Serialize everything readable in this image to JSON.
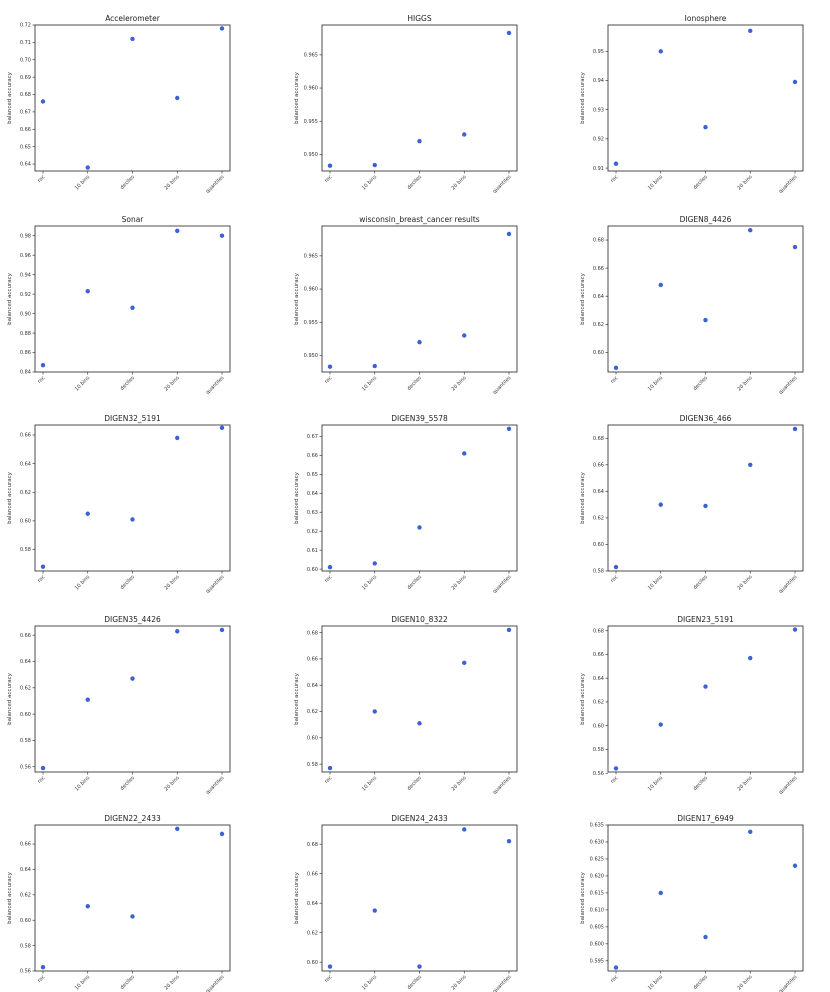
{
  "chart_data": [
    {
      "type": "scatter",
      "title": "Accelerometer",
      "ylabel": "balanced accuracy",
      "categories": [
        "roc",
        "10 bins",
        "deciles",
        "20 bins",
        "quantiles"
      ],
      "values": [
        0.676,
        0.638,
        0.712,
        0.678,
        0.718
      ],
      "ylim": [
        0.636,
        0.72
      ],
      "yticks": [
        0.64,
        0.65,
        0.66,
        0.67,
        0.68,
        0.69,
        0.7,
        0.71,
        0.72
      ],
      "ytick_labels": [
        "0.64",
        "0.65",
        "0.66",
        "0.67",
        "0.68",
        "0.69",
        "0.70",
        "0.71",
        "0.72"
      ]
    },
    {
      "type": "scatter",
      "title": "HIGGS",
      "ylabel": "balanced accuracy",
      "categories": [
        "roc",
        "10 bins",
        "deciles",
        "20 bins",
        "quantiles"
      ],
      "values": [
        0.9483,
        0.9484,
        0.952,
        0.953,
        0.9683
      ],
      "ylim": [
        0.9475,
        0.9695
      ],
      "yticks": [
        0.95,
        0.955,
        0.96,
        0.965
      ],
      "ytick_labels": [
        "0.950",
        "0.955",
        "0.960",
        "0.965"
      ]
    },
    {
      "type": "scatter",
      "title": "Ionosphere",
      "ylabel": "balanced accuracy",
      "categories": [
        "roc",
        "10 bins",
        "deciles",
        "20 bins",
        "quantiles"
      ],
      "values": [
        0.9115,
        0.95,
        0.924,
        0.957,
        0.9395
      ],
      "ylim": [
        0.909,
        0.959
      ],
      "yticks": [
        0.91,
        0.92,
        0.93,
        0.94,
        0.95
      ],
      "ytick_labels": [
        "0.91",
        "0.92",
        "0.93",
        "0.94",
        "0.95"
      ]
    },
    {
      "type": "scatter",
      "title": "Sonar",
      "ylabel": "balanced accuracy",
      "categories": [
        "roc",
        "10 bins",
        "deciles",
        "20 bins",
        "quantiles"
      ],
      "values": [
        0.847,
        0.923,
        0.906,
        0.985,
        0.98
      ],
      "ylim": [
        0.84,
        0.99
      ],
      "yticks": [
        0.84,
        0.86,
        0.88,
        0.9,
        0.92,
        0.94,
        0.96,
        0.98
      ],
      "ytick_labels": [
        "0.84",
        "0.86",
        "0.88",
        "0.90",
        "0.92",
        "0.94",
        "0.96",
        "0.98"
      ]
    },
    {
      "type": "scatter",
      "title": "wisconsin_breast_cancer results",
      "ylabel": "balanced accuracy",
      "categories": [
        "roc",
        "10 bins",
        "deciles",
        "20 bins",
        "quantiles"
      ],
      "values": [
        0.9483,
        0.9484,
        0.952,
        0.953,
        0.9683
      ],
      "ylim": [
        0.9475,
        0.9695
      ],
      "yticks": [
        0.95,
        0.955,
        0.96,
        0.965
      ],
      "ytick_labels": [
        "0.950",
        "0.955",
        "0.960",
        "0.965"
      ]
    },
    {
      "type": "scatter",
      "title": "DIGEN8_4426",
      "ylabel": "balanced accuracy",
      "categories": [
        "roc",
        "10 bins",
        "deciles",
        "20 bins",
        "quantiles"
      ],
      "values": [
        0.589,
        0.648,
        0.623,
        0.687,
        0.675
      ],
      "ylim": [
        0.586,
        0.69
      ],
      "yticks": [
        0.6,
        0.62,
        0.64,
        0.66,
        0.68
      ],
      "ytick_labels": [
        "0.60",
        "0.62",
        "0.64",
        "0.66",
        "0.68"
      ]
    },
    {
      "type": "scatter",
      "title": "DIGEN32_5191",
      "ylabel": "balanced accuracy",
      "categories": [
        "roc",
        "10 bins",
        "deciles",
        "20 bins",
        "quantiles"
      ],
      "values": [
        0.568,
        0.605,
        0.601,
        0.658,
        0.665
      ],
      "ylim": [
        0.565,
        0.667
      ],
      "yticks": [
        0.58,
        0.6,
        0.62,
        0.64,
        0.66
      ],
      "ytick_labels": [
        "0.58",
        "0.60",
        "0.62",
        "0.64",
        "0.66"
      ]
    },
    {
      "type": "scatter",
      "title": "DIGEN39_5578",
      "ylabel": "balanced accuracy",
      "categories": [
        "roc",
        "10 bins",
        "deciles",
        "20 bins",
        "quantiles"
      ],
      "values": [
        0.601,
        0.603,
        0.622,
        0.661,
        0.674
      ],
      "ylim": [
        0.599,
        0.676
      ],
      "yticks": [
        0.6,
        0.61,
        0.62,
        0.63,
        0.64,
        0.65,
        0.66,
        0.67
      ],
      "ytick_labels": [
        "0.60",
        "0.61",
        "0.62",
        "0.63",
        "0.64",
        "0.65",
        "0.66",
        "0.67"
      ]
    },
    {
      "type": "scatter",
      "title": "DIGEN36_466",
      "ylabel": "balanced accuracy",
      "categories": [
        "roc",
        "10 bins",
        "deciles",
        "20 bins",
        "quantiles"
      ],
      "values": [
        0.583,
        0.63,
        0.629,
        0.66,
        0.687
      ],
      "ylim": [
        0.58,
        0.69
      ],
      "yticks": [
        0.58,
        0.6,
        0.62,
        0.64,
        0.66,
        0.68
      ],
      "ytick_labels": [
        "0.58",
        "0.60",
        "0.62",
        "0.64",
        "0.66",
        "0.68"
      ]
    },
    {
      "type": "scatter",
      "title": "DIGEN35_4426",
      "ylabel": "balanced accuracy",
      "categories": [
        "roc",
        "10 bins",
        "deciles",
        "20 bins",
        "quantiles"
      ],
      "values": [
        0.559,
        0.611,
        0.627,
        0.663,
        0.664
      ],
      "ylim": [
        0.556,
        0.667
      ],
      "yticks": [
        0.56,
        0.58,
        0.6,
        0.62,
        0.64,
        0.66
      ],
      "ytick_labels": [
        "0.56",
        "0.58",
        "0.60",
        "0.62",
        "0.64",
        "0.66"
      ]
    },
    {
      "type": "scatter",
      "title": "DIGEN10_8322",
      "ylabel": "balanced accuracy",
      "categories": [
        "roc",
        "10 bins",
        "deciles",
        "20 bins",
        "quantiles"
      ],
      "values": [
        0.577,
        0.62,
        0.611,
        0.657,
        0.682
      ],
      "ylim": [
        0.574,
        0.685
      ],
      "yticks": [
        0.58,
        0.6,
        0.62,
        0.64,
        0.66,
        0.68
      ],
      "ytick_labels": [
        "0.58",
        "0.60",
        "0.62",
        "0.64",
        "0.66",
        "0.68"
      ]
    },
    {
      "type": "scatter",
      "title": "DIGEN23_5191",
      "ylabel": "balanced accuracy",
      "categories": [
        "roc",
        "10 bins",
        "deciles",
        "20 bins",
        "quantiles"
      ],
      "values": [
        0.564,
        0.601,
        0.633,
        0.657,
        0.681
      ],
      "ylim": [
        0.561,
        0.684
      ],
      "yticks": [
        0.56,
        0.58,
        0.6,
        0.62,
        0.64,
        0.66,
        0.68
      ],
      "ytick_labels": [
        "0.56",
        "0.58",
        "0.60",
        "0.62",
        "0.64",
        "0.66",
        "0.68"
      ]
    },
    {
      "type": "scatter",
      "title": "DIGEN22_2433",
      "ylabel": "balanced accuracy",
      "categories": [
        "roc",
        "10 bins",
        "deciles",
        "20 bins",
        "quantiles"
      ],
      "values": [
        0.563,
        0.611,
        0.603,
        0.672,
        0.668
      ],
      "ylim": [
        0.56,
        0.675
      ],
      "yticks": [
        0.56,
        0.58,
        0.6,
        0.62,
        0.64,
        0.66
      ],
      "ytick_labels": [
        "0.56",
        "0.58",
        "0.60",
        "0.62",
        "0.64",
        "0.66"
      ]
    },
    {
      "type": "scatter",
      "title": "DIGEN24_2433",
      "ylabel": "balanced accuracy",
      "categories": [
        "roc",
        "10 bins",
        "deciles",
        "20 bins",
        "quantiles"
      ],
      "values": [
        0.597,
        0.635,
        0.597,
        0.69,
        0.682
      ],
      "ylim": [
        0.594,
        0.693
      ],
      "yticks": [
        0.6,
        0.62,
        0.64,
        0.66,
        0.68
      ],
      "ytick_labels": [
        "0.60",
        "0.62",
        "0.64",
        "0.66",
        "0.68"
      ]
    },
    {
      "type": "scatter",
      "title": "DIGEN17_6949",
      "ylabel": "balanced accuracy",
      "categories": [
        "roc",
        "10 bins",
        "deciles",
        "20 bins",
        "quantiles"
      ],
      "values": [
        0.593,
        0.615,
        0.602,
        0.633,
        0.623
      ],
      "ylim": [
        0.592,
        0.635
      ],
      "yticks": [
        0.595,
        0.6,
        0.605,
        0.61,
        0.615,
        0.62,
        0.625,
        0.63,
        0.635
      ],
      "ytick_labels": [
        "0.595",
        "0.600",
        "0.605",
        "0.610",
        "0.615",
        "0.620",
        "0.625",
        "0.630",
        "0.635"
      ]
    }
  ],
  "colors": {
    "point": "#3a62d6",
    "axis": "#222222"
  }
}
